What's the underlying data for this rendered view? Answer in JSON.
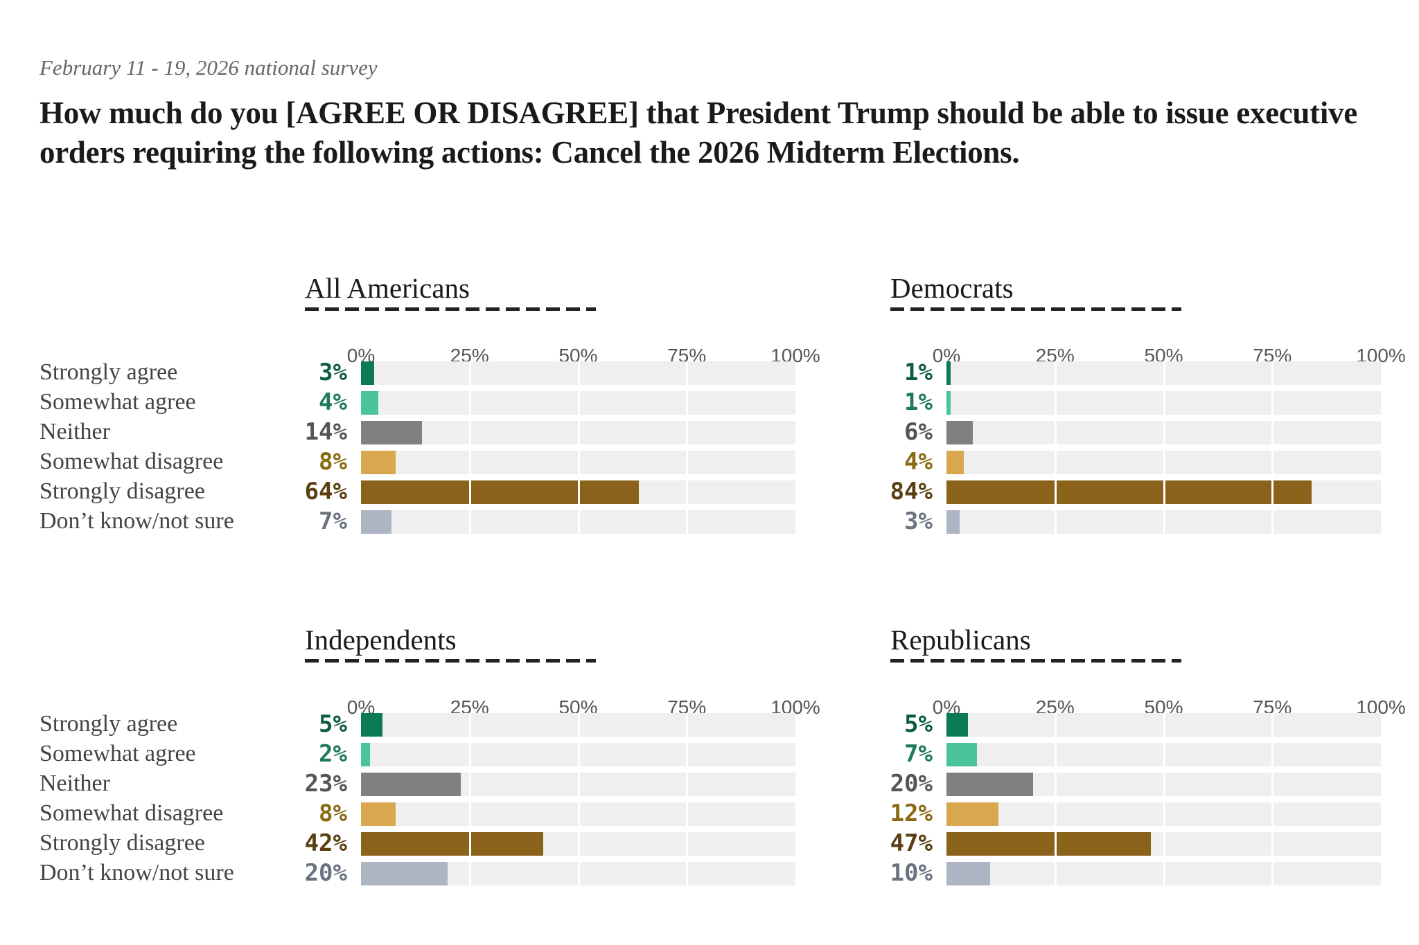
{
  "subtitle": "February 11 - 19, 2026 national survey",
  "title": "How much do you [AGREE OR DISAGREE] that President Trump should be able to issue executive orders requiring the following actions: Cancel the 2026 Midterm Elections.",
  "categories": [
    "Strongly agree",
    "Somewhat agree",
    "Neither",
    "Somewhat disagree",
    "Strongly disagree",
    "Don’t know/not sure"
  ],
  "colors": {
    "bar": [
      "#0b7a55",
      "#4cc49a",
      "#808080",
      "#d9a84e",
      "#8a621a",
      "#adb4c4"
    ],
    "label": [
      "#0d5c40",
      "#1f7a5c",
      "#555555",
      "#8a6a10",
      "#5a4010",
      "#6b7280"
    ],
    "track": "#efefef"
  },
  "chart_data": [
    {
      "type": "bar",
      "title": "All Americans",
      "ticks": [
        "0%",
        "25%",
        "50%",
        "75%",
        "100%"
      ],
      "xlim": [
        0,
        100
      ],
      "values": [
        3,
        4,
        14,
        8,
        64,
        7
      ],
      "labels": [
        "3%",
        "4%",
        "14%",
        "8%",
        "64%",
        "7%"
      ]
    },
    {
      "type": "bar",
      "title": "Democrats",
      "ticks": [
        "0%",
        "25%",
        "50%",
        "75%",
        "100%"
      ],
      "xlim": [
        0,
        100
      ],
      "values": [
        1,
        1,
        6,
        4,
        84,
        3
      ],
      "labels": [
        "1%",
        "1%",
        "6%",
        "4%",
        "84%",
        "3%"
      ]
    },
    {
      "type": "bar",
      "title": "Independents",
      "ticks": [
        "0%",
        "25%",
        "50%",
        "75%",
        "100%"
      ],
      "xlim": [
        0,
        100
      ],
      "values": [
        5,
        2,
        23,
        8,
        42,
        20
      ],
      "labels": [
        "5%",
        "2%",
        "23%",
        "8%",
        "42%",
        "20%"
      ]
    },
    {
      "type": "bar",
      "title": "Republicans",
      "ticks": [
        "0%",
        "25%",
        "50%",
        "75%",
        "100%"
      ],
      "xlim": [
        0,
        100
      ],
      "values": [
        5,
        7,
        20,
        12,
        47,
        10
      ],
      "labels": [
        "5%",
        "7%",
        "20%",
        "12%",
        "47%",
        "10%"
      ]
    }
  ]
}
